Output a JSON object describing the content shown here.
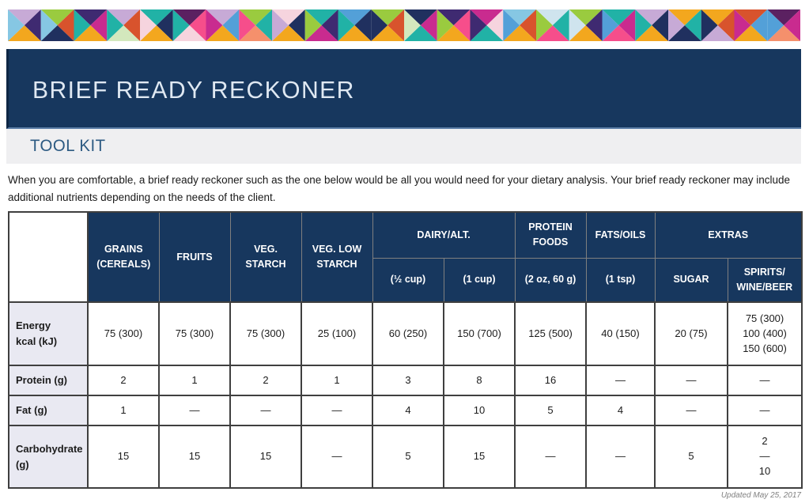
{
  "colors": {
    "band_navy": "#17375e",
    "band_left_edge": "#0e2644",
    "band_bottom_line": "#5b7da6",
    "toolkit_bg": "#efeff1",
    "toolkit_text": "#2c5a82",
    "table_header_navy": "#17375e",
    "table_border_dark": "#3f3f3f",
    "label_cell_bg": "#e9e9f2",
    "footer_gray": "#808080"
  },
  "banner": {
    "palette": {
      "teal": "#21b2a6",
      "navy": "#20305f",
      "plum": "#3f2a71",
      "darkplum": "#5b2161",
      "magenta": "#c92b8f",
      "pink": "#f64e8b",
      "salmon": "#f5906c",
      "rust": "#d8532d",
      "amber": "#f3a71e",
      "lime": "#9acb3f",
      "palegreen": "#d3e8bd",
      "lightblue": "#86c7e3",
      "skyblue": "#53a0d8",
      "lavender": "#c7aad6",
      "palepink": "#f6d4de",
      "cream": "#f8efe0",
      "paleblue": "#cfe4ee"
    },
    "squares": [
      [
        "lavender",
        "plum",
        "amber",
        "lightblue"
      ],
      [
        "lime",
        "rust",
        "navy",
        "lightblue"
      ],
      [
        "plum",
        "magenta",
        "amber",
        "teal"
      ],
      [
        "lavender",
        "rust",
        "palegreen",
        "teal"
      ],
      [
        "teal",
        "navy",
        "amber",
        "palepink"
      ],
      [
        "darkplum",
        "pink",
        "palepink",
        "teal"
      ],
      [
        "lavender",
        "skyblue",
        "amber",
        "magenta"
      ],
      [
        "lime",
        "teal",
        "salmon",
        "pink"
      ],
      [
        "palepink",
        "navy",
        "amber",
        "lavender"
      ],
      [
        "teal",
        "plum",
        "magenta",
        "lime"
      ],
      [
        "skyblue",
        "navy",
        "amber",
        "teal"
      ],
      [
        "lime",
        "rust",
        "amber",
        "navy"
      ],
      [
        "navy",
        "magenta",
        "teal",
        "palegreen"
      ],
      [
        "plum",
        "pink",
        "amber",
        "lime"
      ],
      [
        "magenta",
        "palepink",
        "teal",
        "plum"
      ],
      [
        "lightblue",
        "rust",
        "amber",
        "skyblue"
      ],
      [
        "paleblue",
        "teal",
        "pink",
        "lime"
      ],
      [
        "lime",
        "plum",
        "amber",
        "paleblue"
      ],
      [
        "teal",
        "magenta",
        "pink",
        "skyblue"
      ],
      [
        "lavender",
        "navy",
        "amber",
        "teal"
      ],
      [
        "amber",
        "teal",
        "navy",
        "lavender"
      ],
      [
        "amber",
        "rust",
        "lavender",
        "navy"
      ],
      [
        "rust",
        "skyblue",
        "amber",
        "magenta"
      ],
      [
        "darkplum",
        "magenta",
        "salmon",
        "skyblue"
      ]
    ]
  },
  "header": {
    "title": "BRIEF READY RECKONER"
  },
  "toolkit": {
    "label": "TOOL KIT"
  },
  "intro": {
    "text": "When you are comfortable, a brief ready reckoner such as the one below would be all you would need for your dietary analysis. Your brief ready reckoner may include additional nutrients depending on the needs of the client."
  },
  "table": {
    "header": {
      "corner": "",
      "groups": [
        {
          "label": "GRAINS (CEREALS)"
        },
        {
          "label": "FRUITS"
        },
        {
          "label": "VEG. STARCH"
        },
        {
          "label": "VEG. LOW STARCH"
        },
        {
          "label": "DAIRY/ALT."
        },
        {
          "label": "PROTEIN FOODS"
        },
        {
          "label": "FATS/OILS"
        },
        {
          "label": "EXTRAS"
        }
      ],
      "subheaders": [
        "(½ cup)",
        "(1 cup)",
        "(2 oz, 60 g)",
        "(1 tsp)",
        "SUGAR",
        "SPIRITS/ WINE/BEER"
      ]
    },
    "rows": [
      {
        "label": "Energy\nkcal (kJ)",
        "values": [
          "75 (300)",
          "75 (300)",
          "75 (300)",
          "25 (100)",
          "60 (250)",
          "150 (700)",
          "125 (500)",
          "40 (150)",
          "20 (75)",
          "75 (300)\n100 (400)\n150 (600)"
        ]
      },
      {
        "label": "Protein (g)",
        "values": [
          "2",
          "1",
          "2",
          "1",
          "3",
          "8",
          "16",
          "—",
          "—",
          "—"
        ]
      },
      {
        "label": "Fat (g)",
        "values": [
          "1",
          "—",
          "—",
          "—",
          "4",
          "10",
          "5",
          "4",
          "—",
          "—"
        ]
      },
      {
        "label": "Carbohydrate (g)",
        "values": [
          "15",
          "15",
          "15",
          "—",
          "5",
          "15",
          "—",
          "—",
          "5",
          "2\n—\n10"
        ]
      }
    ]
  },
  "footer": {
    "updated": "Updated May 25, 2017"
  }
}
